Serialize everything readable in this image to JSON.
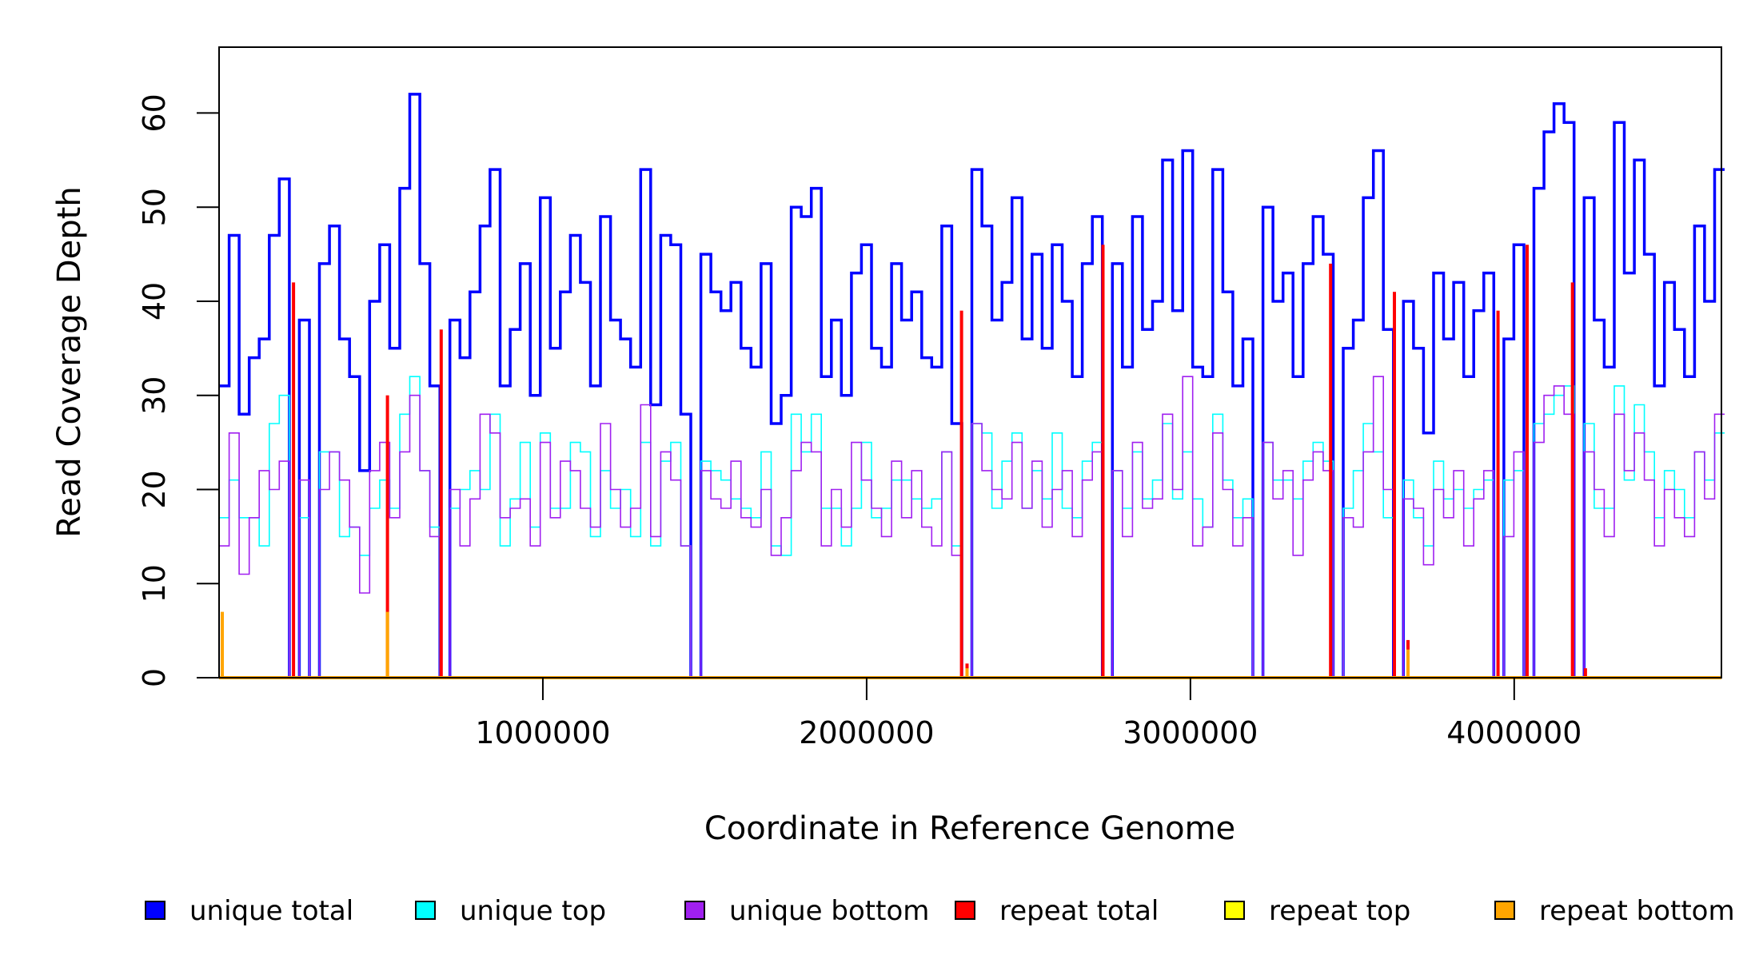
{
  "chart_data": {
    "type": "line",
    "title": "",
    "xlabel": "Coordinate in Reference Genome",
    "ylabel": "Read Coverage Depth",
    "xlim": [
      0,
      4640000
    ],
    "ylim": [
      0,
      67
    ],
    "xticks": [
      1000000,
      2000000,
      3000000,
      4000000
    ],
    "xtick_labels": [
      "1000000",
      "2000000",
      "3000000",
      "4000000"
    ],
    "yticks": [
      0,
      10,
      20,
      30,
      40,
      50,
      60
    ],
    "ytick_labels": [
      "0",
      "10",
      "20",
      "30",
      "40",
      "50",
      "60"
    ],
    "grid": false,
    "legend_position": "bottom",
    "bin_size": 31000,
    "series": [
      {
        "name": "unique total",
        "color": "#0000FF",
        "values": [
          31,
          47,
          28,
          34,
          36,
          47,
          53,
          0,
          38,
          0,
          44,
          48,
          36,
          32,
          22,
          40,
          46,
          35,
          52,
          62,
          44,
          31,
          0,
          38,
          34,
          41,
          48,
          54,
          31,
          37,
          44,
          30,
          51,
          35,
          41,
          47,
          42,
          31,
          49,
          38,
          36,
          33,
          54,
          29,
          47,
          46,
          28,
          0,
          45,
          41,
          39,
          42,
          35,
          33,
          44,
          27,
          30,
          50,
          49,
          52,
          32,
          38,
          30,
          43,
          46,
          35,
          33,
          44,
          38,
          41,
          34,
          33,
          48,
          27,
          0,
          54,
          48,
          38,
          42,
          51,
          36,
          45,
          35,
          46,
          40,
          32,
          44,
          49,
          0,
          44,
          33,
          49,
          37,
          40,
          55,
          39,
          56,
          33,
          32,
          54,
          41,
          31,
          36,
          0,
          50,
          40,
          43,
          32,
          44,
          49,
          45,
          0,
          35,
          38,
          51,
          56,
          37,
          0,
          40,
          35,
          26,
          43,
          36,
          42,
          32,
          39,
          43,
          0,
          36,
          46,
          0,
          52,
          58,
          61,
          59,
          0,
          51,
          38,
          33,
          59,
          43,
          55,
          45,
          31,
          42,
          37,
          32,
          48,
          40,
          54
        ]
      },
      {
        "name": "unique top",
        "color": "#00FFFF",
        "values": [
          17,
          21,
          17,
          17,
          14,
          27,
          30,
          0,
          17,
          0,
          24,
          24,
          15,
          16,
          13,
          18,
          21,
          18,
          28,
          32,
          22,
          16,
          0,
          18,
          20,
          22,
          20,
          28,
          14,
          19,
          25,
          16,
          26,
          18,
          18,
          25,
          24,
          15,
          22,
          18,
          20,
          15,
          25,
          14,
          23,
          25,
          14,
          0,
          23,
          22,
          21,
          19,
          18,
          17,
          24,
          14,
          13,
          28,
          24,
          28,
          18,
          18,
          14,
          18,
          25,
          17,
          18,
          21,
          21,
          19,
          18,
          19,
          24,
          14,
          0,
          27,
          26,
          18,
          23,
          26,
          18,
          22,
          19,
          26,
          18,
          17,
          23,
          25,
          0,
          22,
          18,
          24,
          19,
          21,
          27,
          19,
          24,
          19,
          16,
          28,
          21,
          17,
          19,
          0,
          25,
          21,
          21,
          19,
          23,
          25,
          23,
          0,
          18,
          22,
          27,
          24,
          17,
          0,
          21,
          17,
          14,
          23,
          19,
          20,
          18,
          20,
          21,
          0,
          21,
          22,
          0,
          27,
          28,
          30,
          31,
          0,
          27,
          18,
          18,
          31,
          21,
          29,
          24,
          17,
          22,
          20,
          17,
          24,
          21,
          26
        ]
      },
      {
        "name": "unique bottom",
        "color": "#A020F0",
        "values": [
          14,
          26,
          11,
          17,
          22,
          20,
          23,
          0,
          21,
          0,
          20,
          24,
          21,
          16,
          9,
          22,
          25,
          17,
          24,
          30,
          22,
          15,
          0,
          20,
          14,
          19,
          28,
          26,
          17,
          18,
          19,
          14,
          25,
          17,
          23,
          22,
          18,
          16,
          27,
          20,
          16,
          18,
          29,
          15,
          24,
          21,
          14,
          0,
          22,
          19,
          18,
          23,
          17,
          16,
          20,
          13,
          17,
          22,
          25,
          24,
          14,
          20,
          16,
          25,
          21,
          18,
          15,
          23,
          17,
          22,
          16,
          14,
          24,
          13,
          0,
          27,
          22,
          20,
          19,
          25,
          18,
          23,
          16,
          20,
          22,
          15,
          21,
          24,
          0,
          22,
          15,
          25,
          18,
          19,
          28,
          20,
          32,
          14,
          16,
          26,
          20,
          14,
          17,
          0,
          25,
          19,
          22,
          13,
          21,
          24,
          22,
          0,
          17,
          16,
          24,
          32,
          20,
          0,
          19,
          18,
          12,
          20,
          17,
          22,
          14,
          19,
          22,
          0,
          15,
          24,
          0,
          25,
          30,
          31,
          28,
          0,
          24,
          20,
          15,
          28,
          22,
          26,
          21,
          14,
          20,
          17,
          15,
          24,
          19,
          28
        ]
      }
    ],
    "repeat_series": [
      {
        "name": "repeat total",
        "color": "#FF0000",
        "points": [
          [
            230000,
            42
          ],
          [
            520000,
            30
          ],
          [
            686000,
            37
          ],
          [
            2293000,
            39
          ],
          [
            2310000,
            1.5
          ],
          [
            2730000,
            46
          ],
          [
            3433000,
            44
          ],
          [
            3630000,
            41
          ],
          [
            3672000,
            4
          ],
          [
            3950000,
            39
          ],
          [
            4040000,
            46
          ],
          [
            4180000,
            42
          ],
          [
            4220000,
            1
          ]
        ]
      },
      {
        "name": "repeat top",
        "color": "#FFFF00",
        "points": [
          [
            2310000,
            0.5
          ]
        ]
      },
      {
        "name": "repeat bottom",
        "color": "#FFA500",
        "points": [
          [
            10000,
            7
          ],
          [
            520000,
            7
          ],
          [
            2310000,
            1
          ],
          [
            3672000,
            3
          ]
        ]
      }
    ],
    "legend": [
      "unique total",
      "unique top",
      "unique bottom",
      "repeat total",
      "repeat top",
      "repeat bottom"
    ]
  }
}
